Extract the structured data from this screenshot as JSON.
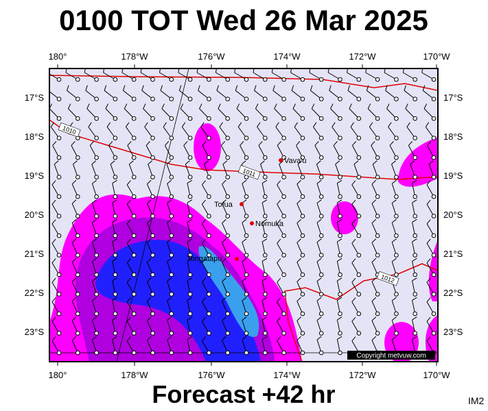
{
  "title": "0100 TOT Wed 26 Mar 2025",
  "footer": "Forecast +42 hr",
  "corner_label": "IM2",
  "copyright": "Copyright metvuw.com",
  "longitude_labels": [
    "180°",
    "178°W",
    "176°W",
    "174°W",
    "172°W",
    "170°W"
  ],
  "latitude_labels": [
    "17°S",
    "18°S",
    "19°S",
    "20°S",
    "21°S",
    "22°S",
    "23°S"
  ],
  "places": [
    "Vava'u",
    "Tofua",
    "Nomuka",
    "Tongatapu"
  ],
  "isobar_labels": [
    "1010",
    "1011",
    "1012"
  ]
}
